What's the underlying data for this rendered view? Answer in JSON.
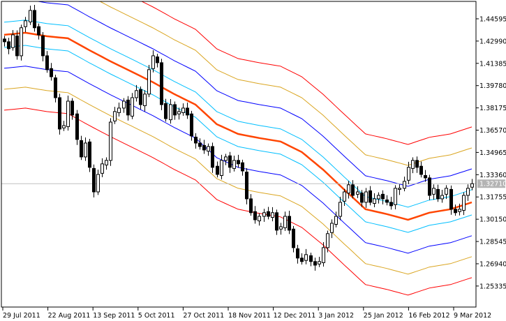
{
  "chart_data": {
    "type": "candlestick",
    "title": "",
    "ylim": [
      1.2382,
      1.4585
    ],
    "y_ticks": [
      "1.44595",
      "1.42990",
      "1.41385",
      "1.39780",
      "1.38175",
      "1.36570",
      "1.34965",
      "1.33360",
      "1.31755",
      "1.30150",
      "1.28545",
      "1.26940",
      "1.25335"
    ],
    "x_ticks": [
      "29 Jul 2011",
      "22 Aug 2011",
      "13 Sep 2011",
      "5 Oct 2011",
      "27 Oct 2011",
      "18 Nov 2011",
      "12 Dec 2011",
      "3 Jan 2012",
      "25 Jan 2012",
      "16 Feb 2012",
      "9 Mar 2012"
    ],
    "current_price": "1.32710",
    "grid": false,
    "closes": [
      1.4294,
      1.4244,
      1.4344,
      1.4193,
      1.4395,
      1.4445,
      1.452,
      1.4395,
      1.4344,
      1.4193,
      1.4093,
      1.4042,
      1.3891,
      1.3665,
      1.369,
      1.3866,
      1.3766,
      1.359,
      1.3464,
      1.3564,
      1.3389,
      1.3212,
      1.3338,
      1.3414,
      1.3439,
      1.3715,
      1.3791,
      1.3816,
      1.3866,
      1.3766,
      1.3891,
      1.3942,
      1.3841,
      1.3917,
      1.4093,
      1.4193,
      1.4143,
      1.3841,
      1.374,
      1.3841,
      1.3766,
      1.3791,
      1.3816,
      1.3766,
      1.3615,
      1.3564,
      1.3539,
      1.3514,
      1.3539,
      1.3389,
      1.3338,
      1.3439,
      1.3464,
      1.3389,
      1.3439,
      1.3414,
      1.3363,
      1.3162,
      1.3062,
      1.3011,
      1.3036,
      1.3062,
      1.3036,
      1.3062,
      1.2936,
      1.2961,
      1.3036,
      1.2936,
      1.281,
      1.2735,
      1.271,
      1.276,
      1.271,
      1.2684,
      1.271,
      1.281,
      1.2911,
      1.2986,
      1.3036,
      1.3137,
      1.3212,
      1.3263,
      1.3187,
      1.3212,
      1.3137,
      1.3212,
      1.3137,
      1.3162,
      1.3187,
      1.3162,
      1.3137,
      1.3112,
      1.3238,
      1.3238,
      1.3288,
      1.3389,
      1.3439,
      1.3389,
      1.3338,
      1.3313,
      1.3187,
      1.3238,
      1.3162,
      1.3187,
      1.3238,
      1.3087,
      1.3062,
      1.3087,
      1.3187,
      1.3238,
      1.3271
    ],
    "moving_average": {
      "every_n_bars": 5,
      "values": [
        1.4344,
        1.4359,
        1.4334,
        1.4319,
        1.4234,
        1.4153,
        1.4078,
        1.4002,
        1.3917,
        1.3841,
        1.37,
        1.363,
        1.36,
        1.3575,
        1.3499,
        1.3373,
        1.3228,
        1.3087,
        1.3052,
        1.3011,
        1.3062,
        1.3087,
        1.3137
      ]
    },
    "bands": [
      {
        "offset": 0.0091,
        "color": "#00BFFF"
      },
      {
        "offset": 0.0241,
        "color": "#0000FF"
      },
      {
        "offset": 0.0392,
        "color": "#DAA520"
      },
      {
        "offset": 0.0543,
        "color": "#FF0000"
      }
    ],
    "colors": {
      "ma": "#FF4500",
      "candle": "#000000",
      "price_line": "#C0C0C0",
      "price_label_bg": "#B4B4B4"
    }
  }
}
